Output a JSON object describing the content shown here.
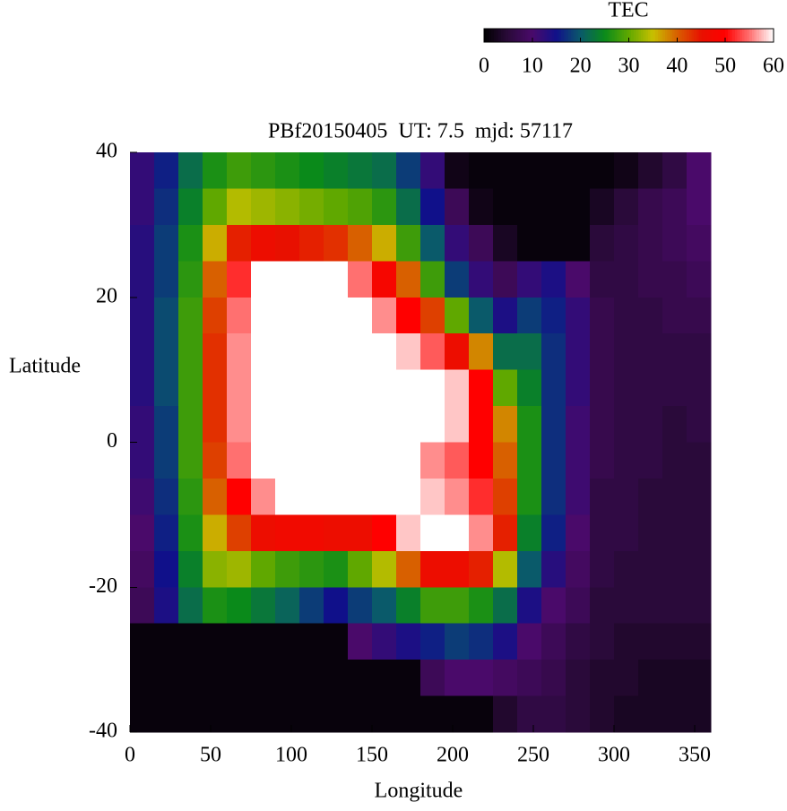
{
  "chart_data": {
    "type": "heatmap",
    "title": "PBf20150405  UT: 7.5  mjd: 57117",
    "x_label": "Longitude",
    "y_label": "Latitude",
    "colorbar_label": "TEC",
    "x": [
      7.5,
      22.5,
      37.5,
      52.5,
      67.5,
      82.5,
      97.5,
      112.5,
      127.5,
      142.5,
      157.5,
      172.5,
      187.5,
      202.5,
      217.5,
      232.5,
      247.5,
      262.5,
      277.5,
      292.5,
      307.5,
      322.5,
      337.5,
      352.5
    ],
    "y": [
      37.5,
      32.5,
      27.5,
      22.5,
      17.5,
      12.5,
      7.5,
      2.5,
      -2.5,
      -7.5,
      -12.5,
      -17.5,
      -22.5,
      -27.5,
      -32.5,
      -37.5
    ],
    "values": [
      [
        12,
        16,
        22,
        26,
        28,
        27,
        26,
        25,
        24,
        23,
        22,
        18,
        12,
        2,
        1,
        1,
        1,
        1,
        1,
        1,
        2,
        4,
        6,
        10
      ],
      [
        12,
        17,
        24,
        30,
        34,
        33,
        32,
        31,
        30,
        29,
        27,
        22,
        15,
        8,
        2,
        1,
        1,
        1,
        1,
        3,
        5,
        7,
        8,
        10
      ],
      [
        13,
        18,
        26,
        36,
        44,
        46,
        45,
        44,
        43,
        40,
        36,
        28,
        20,
        12,
        8,
        3,
        1,
        1,
        1,
        5,
        6,
        7,
        8,
        9
      ],
      [
        13,
        18,
        27,
        40,
        52,
        60,
        60,
        60,
        60,
        55,
        48,
        40,
        28,
        18,
        12,
        8,
        12,
        14,
        10,
        6,
        6,
        7,
        7,
        8
      ],
      [
        13,
        19,
        28,
        42,
        55,
        60,
        60,
        60,
        60,
        60,
        56,
        50,
        42,
        30,
        20,
        14,
        18,
        16,
        12,
        7,
        6,
        6,
        7,
        7
      ],
      [
        13,
        19,
        28,
        43,
        56,
        60,
        60,
        60,
        60,
        60,
        60,
        58,
        54,
        46,
        38,
        22,
        22,
        17,
        12,
        7,
        6,
        6,
        6,
        6
      ],
      [
        13,
        19,
        28,
        43,
        56,
        60,
        60,
        60,
        60,
        60,
        60,
        60,
        60,
        58,
        50,
        30,
        24,
        17,
        12,
        7,
        6,
        6,
        6,
        6
      ],
      [
        12,
        18,
        28,
        43,
        56,
        60,
        60,
        60,
        60,
        60,
        60,
        60,
        60,
        58,
        50,
        38,
        26,
        17,
        11,
        7,
        6,
        6,
        5,
        6
      ],
      [
        12,
        18,
        28,
        42,
        55,
        60,
        60,
        60,
        60,
        60,
        60,
        60,
        56,
        54,
        50,
        40,
        26,
        17,
        11,
        7,
        6,
        6,
        5,
        5
      ],
      [
        11,
        17,
        27,
        40,
        50,
        56,
        60,
        60,
        60,
        60,
        60,
        60,
        58,
        56,
        52,
        42,
        26,
        17,
        11,
        6,
        6,
        5,
        5,
        5
      ],
      [
        10,
        16,
        26,
        36,
        42,
        46,
        47,
        47,
        46,
        46,
        50,
        58,
        60,
        60,
        56,
        44,
        24,
        16,
        10,
        6,
        6,
        5,
        5,
        5
      ],
      [
        9,
        15,
        24,
        32,
        33,
        30,
        28,
        27,
        26,
        30,
        34,
        40,
        46,
        46,
        44,
        34,
        20,
        13,
        9,
        6,
        5,
        5,
        5,
        5
      ],
      [
        8,
        14,
        22,
        26,
        25,
        23,
        21,
        18,
        15,
        18,
        20,
        24,
        28,
        28,
        26,
        22,
        14,
        10,
        8,
        5,
        5,
        5,
        5,
        5
      ],
      [
        1,
        1,
        1,
        1,
        1,
        1,
        1,
        1,
        1,
        10,
        12,
        14,
        16,
        18,
        17,
        14,
        10,
        8,
        6,
        5,
        4,
        4,
        4,
        4
      ],
      [
        1,
        1,
        1,
        1,
        1,
        1,
        1,
        1,
        1,
        1,
        1,
        1,
        8,
        10,
        10,
        9,
        8,
        7,
        5,
        4,
        4,
        3,
        3,
        3
      ],
      [
        1,
        1,
        1,
        1,
        1,
        1,
        1,
        1,
        1,
        1,
        1,
        1,
        1,
        1,
        1,
        4,
        6,
        6,
        5,
        4,
        3,
        3,
        3,
        3
      ]
    ],
    "xlim": [
      0,
      360
    ],
    "ylim": [
      -40,
      40
    ],
    "zlim": [
      0,
      60
    ],
    "xticks": [
      0,
      50,
      100,
      150,
      200,
      250,
      300,
      350
    ],
    "yticks": [
      -40,
      -20,
      0,
      20,
      40
    ],
    "zticks": [
      0,
      10,
      20,
      30,
      40,
      50,
      60
    ],
    "colormap": [
      "#000000",
      "#2a0a3a",
      "#4a0a6a",
      "#10108a",
      "#0a5a6a",
      "#0a8a1a",
      "#60a800",
      "#c8c000",
      "#d86000",
      "#e81000",
      "#ff0000",
      "#ff7070",
      "#ffffff"
    ]
  }
}
